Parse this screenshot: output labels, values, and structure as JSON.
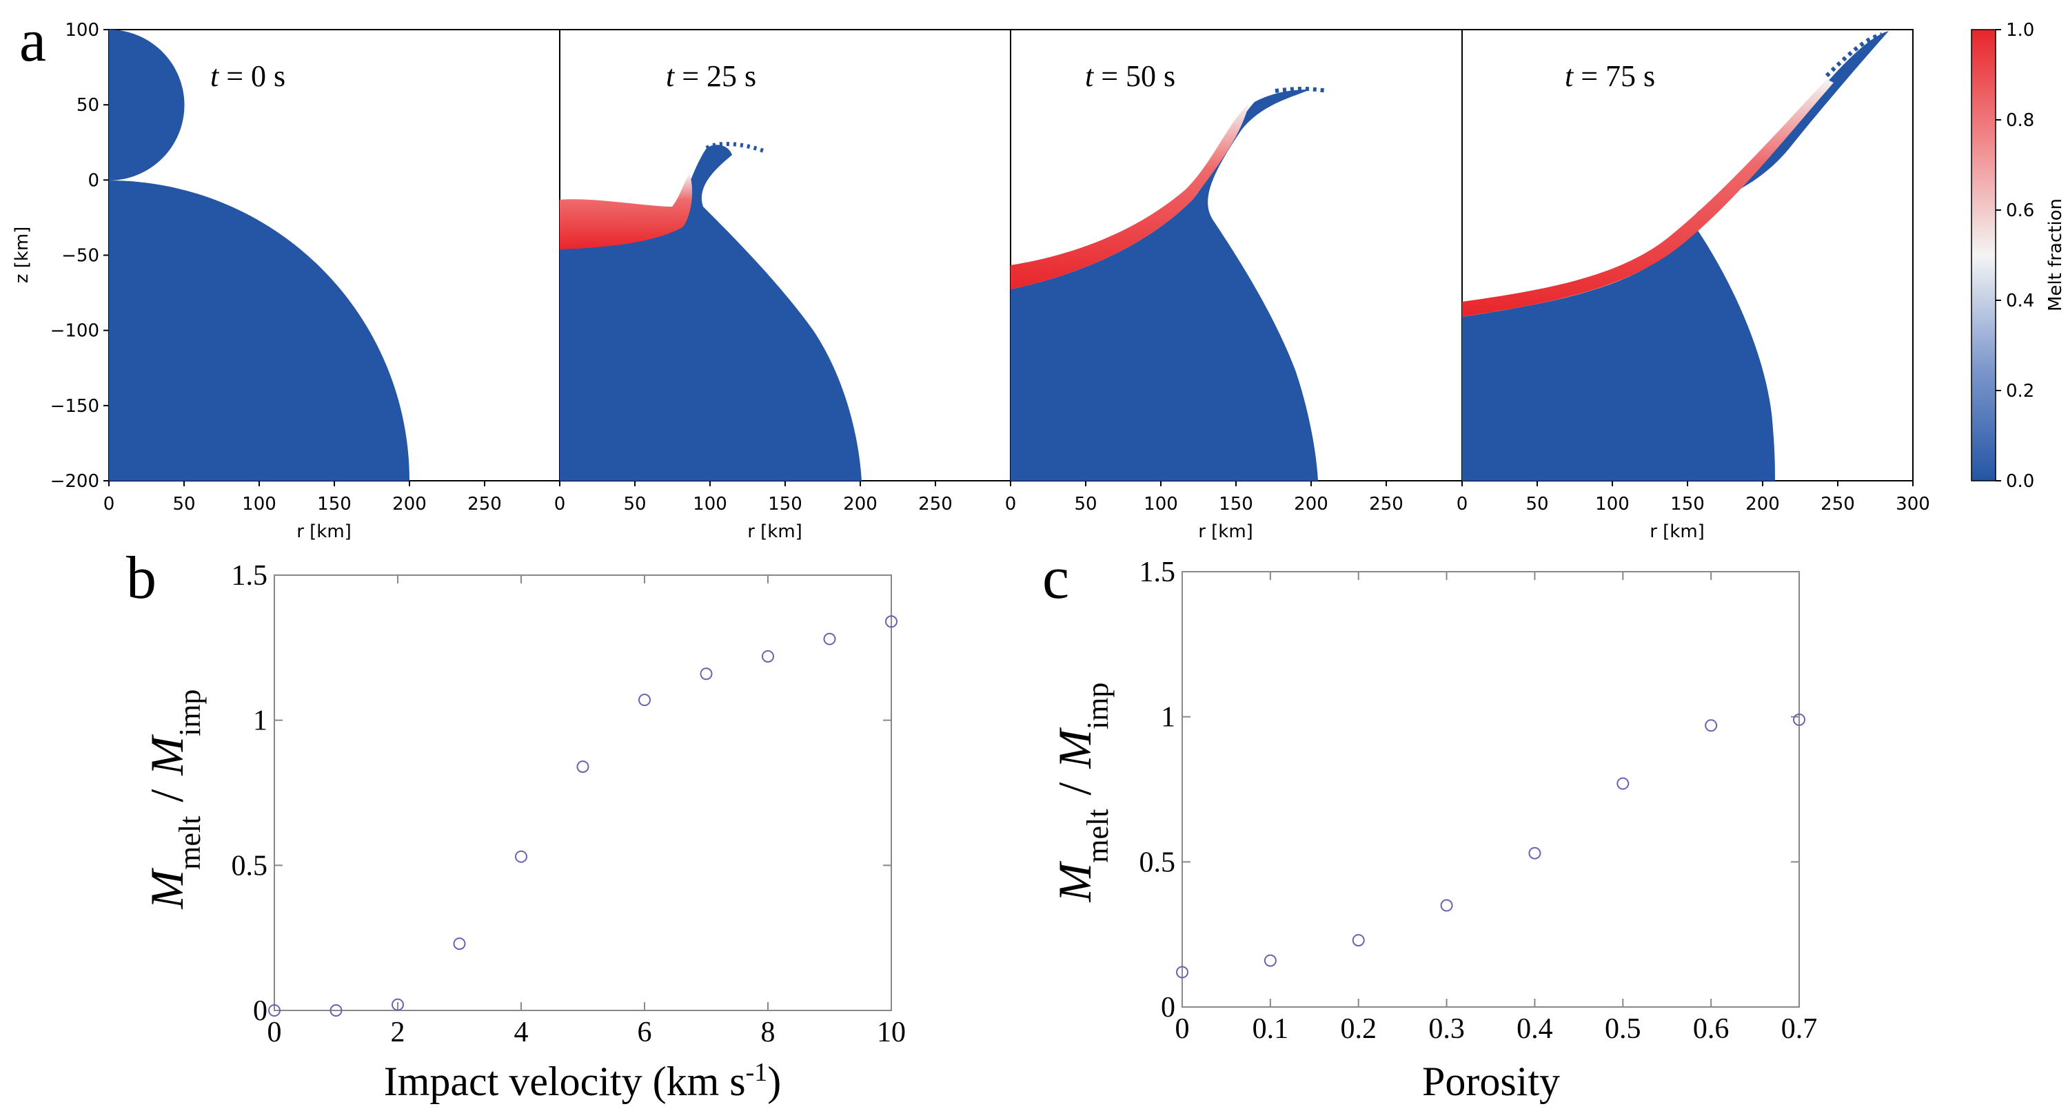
{
  "colors": {
    "solid": "#2456a5",
    "melt": "#e8262b",
    "marker": "#6f5fb0",
    "axis": "#000000",
    "light_axis": "#888888"
  },
  "icons": [
    "colorbar-gradient"
  ],
  "panel_letters": {
    "a": "a",
    "b": "b",
    "c": "c"
  },
  "chart_data": [
    {
      "id": "panel-a",
      "type": "heatmap",
      "description_of_marks": "material melt fraction snapshots",
      "xlabel": "r [km]",
      "ylabel": "z [km]",
      "xlim": [
        0,
        300
      ],
      "ylim": [
        -200,
        100
      ],
      "yticks": [
        "100",
        "50",
        "0",
        "−50",
        "−100",
        "−150",
        "−200"
      ],
      "xticks": [
        "0",
        "50",
        "100",
        "150",
        "200",
        "250"
      ],
      "last_xticks": [
        "0",
        "50",
        "100",
        "150",
        "200",
        "250",
        "300"
      ],
      "snapshots": [
        {
          "label_var": "t",
          "label_rest": " = 0 s",
          "time_s": 0
        },
        {
          "label_var": "t",
          "label_rest": " = 25 s",
          "time_s": 25
        },
        {
          "label_var": "t",
          "label_rest": " = 50 s",
          "time_s": 50
        },
        {
          "label_var": "t",
          "label_rest": " = 75 s",
          "time_s": 75
        }
      ],
      "colorbar": {
        "label": "Melt fraction",
        "range": [
          0,
          1
        ],
        "ticks": [
          "1.0",
          "0.8",
          "0.6",
          "0.4",
          "0.2",
          "0.0"
        ]
      }
    },
    {
      "id": "panel-b",
      "type": "scatter",
      "xlabel_main": "Impact velocity (km s",
      "xlabel_sup": "-1",
      "xlabel_end": ")",
      "ylabel_num": "M",
      "ylabel_num_sub": "melt",
      "ylabel_sep": "/",
      "ylabel_den": "M",
      "ylabel_den_sub": "imp",
      "xlim": [
        0,
        10
      ],
      "ylim": [
        0,
        1.5
      ],
      "xticks": [
        "0",
        "2",
        "4",
        "6",
        "8",
        "10"
      ],
      "yticks": [
        "0",
        "0.5",
        "1",
        "1.5"
      ],
      "x": [
        0,
        1,
        2,
        3,
        4,
        5,
        6,
        7,
        8,
        9,
        10
      ],
      "y": [
        0.0,
        0.0,
        0.02,
        0.23,
        0.53,
        0.84,
        1.07,
        1.16,
        1.22,
        1.28,
        1.34
      ],
      "grid": false
    },
    {
      "id": "panel-c",
      "type": "scatter",
      "xlabel": "Porosity",
      "ylabel_num": "M",
      "ylabel_num_sub": "melt",
      "ylabel_sep": "/",
      "ylabel_den": "M",
      "ylabel_den_sub": "imp",
      "xlim": [
        0,
        0.7
      ],
      "ylim": [
        0,
        1.5
      ],
      "xticks": [
        "0",
        "0.1",
        "0.2",
        "0.3",
        "0.4",
        "0.5",
        "0.6",
        "0.7"
      ],
      "yticks": [
        "0",
        "0.5",
        "1",
        "1.5"
      ],
      "x": [
        0,
        0.1,
        0.2,
        0.3,
        0.4,
        0.5,
        0.6,
        0.7
      ],
      "y": [
        0.12,
        0.16,
        0.23,
        0.35,
        0.53,
        0.77,
        0.97,
        0.99
      ],
      "grid": false
    }
  ]
}
